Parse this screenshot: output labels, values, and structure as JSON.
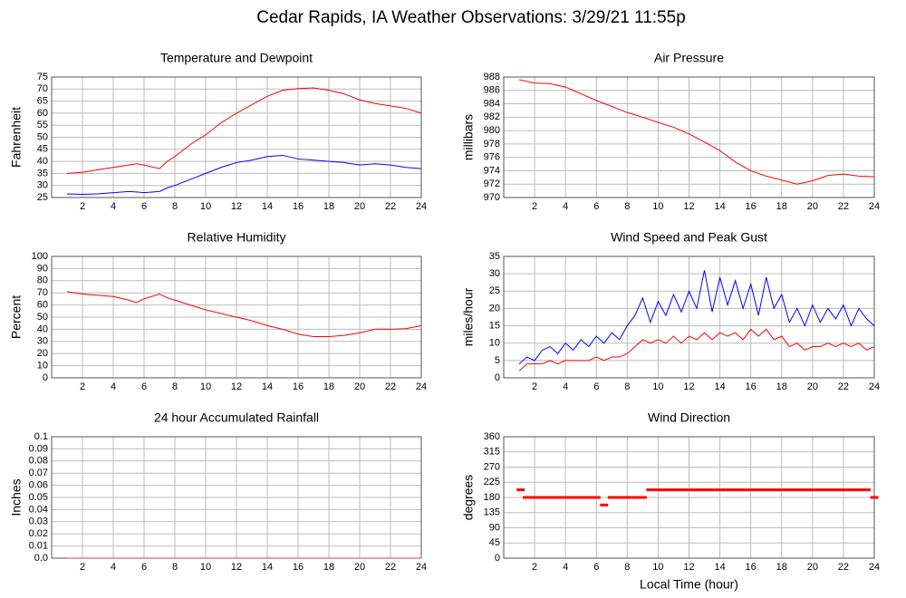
{
  "title": "Cedar Rapids, IA Weather Observations: 3/29/21 11:55p",
  "chart_data": [
    {
      "type": "line",
      "title": "Temperature and Dewpoint",
      "y_label": "Fahrenheit",
      "x": [
        1,
        2,
        3,
        4,
        5,
        5.5,
        6,
        7,
        7.5,
        8,
        9,
        10,
        11,
        12,
        13,
        14,
        15,
        16,
        17,
        18,
        19,
        20,
        21,
        22,
        23,
        24
      ],
      "series": [
        {
          "name": "Temperature",
          "color": "#ff0000",
          "values": [
            35,
            35.5,
            36.5,
            37.5,
            38.5,
            39,
            38.5,
            37,
            40,
            42,
            47,
            51,
            56,
            60,
            63.5,
            67,
            69.5,
            70.2,
            70.5,
            69.5,
            68,
            65.5,
            64,
            63,
            62,
            60
          ]
        },
        {
          "name": "Dewpoint",
          "color": "#0000ff",
          "values": [
            26.5,
            26.3,
            26.5,
            27,
            27.5,
            27.3,
            27,
            27.5,
            29,
            30,
            32.5,
            35,
            37.5,
            39.5,
            40.5,
            42,
            42.5,
            41,
            40.5,
            40,
            39.5,
            38.5,
            39,
            38.5,
            37.5,
            37
          ]
        }
      ],
      "xlim": [
        0,
        24
      ],
      "xticks": [
        2,
        4,
        6,
        8,
        10,
        12,
        14,
        16,
        18,
        20,
        22,
        24
      ],
      "ylim": [
        25,
        75
      ],
      "yticks": [
        25,
        30,
        35,
        40,
        45,
        50,
        55,
        60,
        65,
        70,
        75
      ],
      "grid": true
    },
    {
      "type": "line",
      "title": "Air Pressure",
      "y_label": "millibars",
      "x": [
        1,
        2,
        3,
        4,
        5,
        6,
        7,
        8,
        9,
        10,
        11,
        12,
        13,
        14,
        15,
        16,
        17,
        18,
        19,
        20,
        21,
        22,
        23,
        24
      ],
      "series": [
        {
          "name": "Pressure",
          "color": "#ff0000",
          "values": [
            987.6,
            987.1,
            987,
            986.5,
            985.5,
            984.5,
            983.6,
            982.7,
            982,
            981.2,
            980.5,
            979.5,
            978.3,
            977,
            975.3,
            974,
            973.2,
            972.6,
            972,
            972.5,
            973.3,
            973.5,
            973.2,
            973.1
          ]
        }
      ],
      "xlim": [
        0,
        24
      ],
      "xticks": [
        2,
        4,
        6,
        8,
        10,
        12,
        14,
        16,
        18,
        20,
        22,
        24
      ],
      "ylim": [
        970,
        988
      ],
      "yticks": [
        970,
        972,
        974,
        976,
        978,
        980,
        982,
        984,
        986,
        988
      ],
      "grid": true
    },
    {
      "type": "line",
      "title": "Relative Humidity",
      "y_label": "Percent",
      "x": [
        1,
        2,
        3,
        4,
        5,
        5.5,
        6,
        7,
        7.5,
        8,
        9,
        10,
        11,
        12,
        13,
        14,
        15,
        16,
        17,
        18,
        19,
        20,
        21,
        22,
        23,
        24
      ],
      "series": [
        {
          "name": "Humidity",
          "color": "#ff0000",
          "values": [
            71,
            69,
            68,
            67,
            64,
            62,
            65,
            69,
            66,
            64,
            60,
            56,
            53,
            50,
            47,
            43,
            40,
            36,
            34,
            34,
            35,
            37,
            40,
            40,
            40.5,
            43
          ]
        }
      ],
      "xlim": [
        0,
        24
      ],
      "xticks": [
        2,
        4,
        6,
        8,
        10,
        12,
        14,
        16,
        18,
        20,
        22,
        24
      ],
      "ylim": [
        0,
        100
      ],
      "yticks": [
        0,
        10,
        20,
        30,
        40,
        50,
        60,
        70,
        80,
        90,
        100
      ],
      "grid": true
    },
    {
      "type": "line",
      "title": "Wind Speed and Peak Gust",
      "y_label": "miles/hour",
      "x": [
        1,
        1.5,
        2,
        2.5,
        3,
        3.5,
        4,
        4.5,
        5,
        5.5,
        6,
        6.5,
        7,
        7.5,
        8,
        8.5,
        9,
        9.5,
        10,
        10.5,
        11,
        11.5,
        12,
        12.5,
        13,
        13.5,
        14,
        14.5,
        15,
        15.5,
        16,
        16.5,
        17,
        17.5,
        18,
        18.5,
        19,
        19.5,
        20,
        20.5,
        21,
        21.5,
        22,
        22.5,
        23,
        23.5,
        24
      ],
      "series": [
        {
          "name": "Peak Gust",
          "color": "#0000ff",
          "values": [
            4,
            6,
            5,
            8,
            9,
            7,
            10,
            8,
            11,
            9,
            12,
            10,
            13,
            11,
            15,
            18,
            23,
            16,
            22,
            18,
            24,
            19,
            25,
            20,
            31,
            19,
            29,
            21,
            28,
            20,
            27,
            18,
            29,
            20,
            24,
            16,
            20,
            15,
            21,
            16,
            20,
            17,
            21,
            15,
            20,
            17,
            15
          ]
        },
        {
          "name": "Wind Speed",
          "color": "#ff0000",
          "values": [
            2,
            4,
            4,
            4,
            5,
            4,
            5,
            5,
            5,
            5,
            6,
            5,
            6,
            6,
            7,
            9,
            11,
            10,
            11,
            10,
            12,
            10,
            12,
            11,
            13,
            11,
            13,
            12,
            13,
            11,
            14,
            12,
            14,
            11,
            12,
            9,
            10,
            8,
            9,
            9,
            10,
            9,
            10,
            9,
            10,
            8,
            9
          ]
        }
      ],
      "xlim": [
        0,
        24
      ],
      "xticks": [
        2,
        4,
        6,
        8,
        10,
        12,
        14,
        16,
        18,
        20,
        22,
        24
      ],
      "ylim": [
        0,
        35
      ],
      "yticks": [
        0,
        5,
        10,
        15,
        20,
        25,
        30,
        35
      ],
      "grid": true
    },
    {
      "type": "line",
      "title": "24 hour Accumulated Rainfall",
      "y_label": "Inches",
      "x": [
        1,
        24
      ],
      "series": [
        {
          "name": "Rainfall",
          "color": "#e0307a",
          "values": [
            0,
            0
          ]
        }
      ],
      "xlim": [
        0,
        24
      ],
      "xticks": [
        2,
        4,
        6,
        8,
        10,
        12,
        14,
        16,
        18,
        20,
        22,
        24
      ],
      "ylim": [
        0,
        0.1
      ],
      "yticks": [
        {
          "value": 0,
          "label": "0.0"
        },
        0.01,
        0.02,
        0.03,
        0.04,
        0.05,
        0.06,
        0.07,
        0.08,
        0.09,
        0.1
      ],
      "grid": true
    },
    {
      "type": "scatter",
      "title": "Wind Direction",
      "y_label": "degrees",
      "x_label": "Local Time (hour)",
      "x": [
        1.1,
        1.5,
        2,
        2.5,
        3,
        3.5,
        4,
        4.5,
        5,
        5.5,
        6,
        6.5,
        7,
        7.5,
        8,
        8.5,
        9,
        9.5,
        10,
        10.5,
        11,
        11.5,
        12,
        12.5,
        13,
        13.5,
        14,
        14.5,
        15,
        15.5,
        16,
        16.5,
        17,
        17.5,
        18,
        18.5,
        19,
        19.5,
        20,
        20.5,
        21,
        21.5,
        22,
        22.5,
        23,
        23.5,
        24
      ],
      "series": [
        {
          "name": "Direction",
          "color": "#ff0000",
          "values": [
            202.5,
            180,
            180,
            180,
            180,
            180,
            180,
            180,
            180,
            180,
            180,
            157.5,
            180,
            180,
            180,
            180,
            180,
            202.5,
            202.5,
            202.5,
            202.5,
            202.5,
            202.5,
            202.5,
            202.5,
            202.5,
            202.5,
            202.5,
            202.5,
            202.5,
            202.5,
            202.5,
            202.5,
            202.5,
            202.5,
            202.5,
            202.5,
            202.5,
            202.5,
            202.5,
            202.5,
            202.5,
            202.5,
            202.5,
            202.5,
            202.5,
            180
          ]
        }
      ],
      "xlim": [
        0,
        24
      ],
      "xticks": [
        2,
        4,
        6,
        8,
        10,
        12,
        14,
        16,
        18,
        20,
        22,
        24
      ],
      "ylim": [
        0,
        360
      ],
      "yticks": [
        0,
        45,
        90,
        135,
        180,
        225,
        270,
        315,
        360
      ],
      "grid": true
    }
  ]
}
